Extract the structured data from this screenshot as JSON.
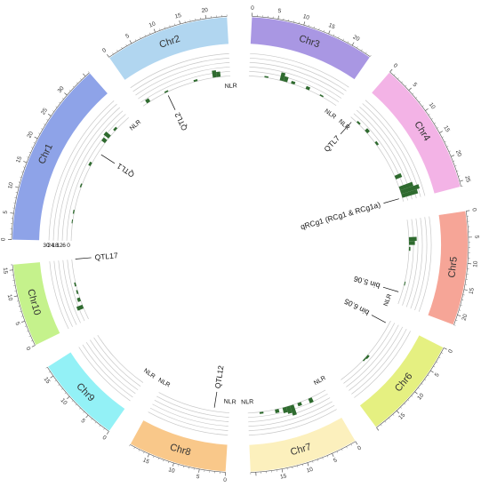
{
  "colors": {
    "density_bar": "#2f6b2f",
    "track_ring": "#c8c8c8",
    "tick": "#555555"
  },
  "track_scale_labels": [
    "0",
    "6",
    "12",
    "18",
    "24",
    "30"
  ],
  "nlr_label": "NLR",
  "chromosomes": [
    {
      "name": "Chr1",
      "length": 36,
      "color": "#8ea3e8",
      "ticks": [
        0,
        5,
        10,
        15,
        20,
        25,
        30
      ],
      "density": [
        [
          4.5,
          1.2
        ],
        [
          7,
          1.6
        ],
        [
          14,
          1.8
        ],
        [
          20,
          3.2
        ],
        [
          27,
          5.8
        ],
        [
          28.5,
          8.5
        ],
        [
          31,
          3.0
        ]
      ]
    },
    {
      "name": "Chr2",
      "length": 24,
      "color": "#b1d6f0",
      "ticks": [
        0,
        5,
        10,
        15,
        20
      ],
      "density": [
        [
          1.2,
          5.0
        ],
        [
          6.5,
          2.0
        ],
        [
          14.5,
          2.5
        ],
        [
          19.5,
          9.5
        ],
        [
          20.5,
          7.0
        ]
      ]
    },
    {
      "name": "Chr3",
      "length": 24,
      "color": "#a997e3",
      "ticks": [
        0,
        5,
        10,
        15,
        20
      ],
      "density": [
        [
          4,
          2.0
        ],
        [
          8,
          11.0
        ],
        [
          9,
          7.0
        ],
        [
          11,
          3.5
        ],
        [
          15,
          4.0
        ],
        [
          19,
          1.8
        ]
      ]
    },
    {
      "name": "Chr4",
      "length": 26,
      "color": "#f3b3e6",
      "ticks": [
        0,
        5,
        10,
        15,
        20,
        25
      ],
      "density": [
        [
          2,
          2.5
        ],
        [
          5,
          4.5
        ],
        [
          9,
          3.0
        ],
        [
          19,
          9.0
        ],
        [
          22,
          19.0
        ],
        [
          23,
          26.0
        ],
        [
          24,
          22.0
        ]
      ]
    },
    {
      "name": "Chr5",
      "length": 22,
      "color": "#f6a597",
      "ticks": [
        0,
        5,
        10,
        15,
        20
      ],
      "density": [
        [
          4.5,
          10.5
        ],
        [
          5.5,
          8.0
        ],
        [
          7,
          2.0
        ],
        [
          16,
          1.2
        ]
      ]
    },
    {
      "name": "Chr6",
      "length": 20,
      "color": "#e5f081",
      "ticks": [
        0,
        5,
        10,
        15
      ],
      "density": [
        [
          10.5,
          3.0
        ],
        [
          11.5,
          1.8
        ]
      ]
    },
    {
      "name": "Chr7",
      "length": 21,
      "color": "#fcf0bd",
      "ticks": [
        0,
        5,
        10,
        15
      ],
      "density": [
        [
          4,
          6.5
        ],
        [
          7,
          4.5
        ],
        [
          9,
          14.0
        ],
        [
          10,
          10.0
        ],
        [
          11,
          7.5
        ],
        [
          13,
          5.0
        ],
        [
          17,
          2.5
        ]
      ]
    },
    {
      "name": "Chr8",
      "length": 19,
      "color": "#f9c88a",
      "ticks": [
        0,
        5,
        10,
        15
      ],
      "density": []
    },
    {
      "name": "Chr9",
      "length": 17,
      "color": "#93f1f6",
      "ticks": [
        0,
        5,
        10,
        15
      ],
      "density": []
    },
    {
      "name": "Chr10",
      "length": 16,
      "color": "#c5f28c",
      "ticks": [
        0,
        5,
        10,
        15
      ],
      "density": [
        [
          3,
          8.5
        ],
        [
          5,
          4.0
        ],
        [
          7,
          2.0
        ],
        [
          9,
          2.0
        ]
      ]
    }
  ],
  "nlr_markers": [
    {
      "chr": "Chr1",
      "pos": 36
    },
    {
      "chr": "Chr2",
      "pos": 24
    },
    {
      "chr": "Chr3",
      "pos": 24
    },
    {
      "chr": "Chr4",
      "pos": 0
    },
    {
      "chr": "Chr5",
      "pos": 22
    },
    {
      "chr": "Chr7",
      "pos": 0
    },
    {
      "chr": "Chr7",
      "pos": 21
    },
    {
      "chr": "Chr8",
      "pos": 0
    },
    {
      "chr": "Chr8",
      "pos": 19
    },
    {
      "chr": "Chr9",
      "pos": 0
    }
  ],
  "qtls": [
    {
      "label": "QTL1",
      "chr": "Chr1",
      "pos": 24
    },
    {
      "label": "QTL2",
      "chr": "Chr2",
      "pos": 7
    },
    {
      "label": "QTL7",
      "chr": "Chr4",
      "pos": 1
    },
    {
      "label": "qRCg1 (RCg1 & RCg1a)",
      "chr": "Chr4",
      "pos": 25
    },
    {
      "label": "bin 5.06",
      "chr": "Chr5",
      "pos": 19
    },
    {
      "label": "bin 6.05",
      "chr": "Chr6",
      "pos": 1
    },
    {
      "label": "QTL12",
      "chr": "Chr8",
      "pos": 4
    },
    {
      "label": "QTL17",
      "chr": "Chr10",
      "pos": 16
    }
  ]
}
